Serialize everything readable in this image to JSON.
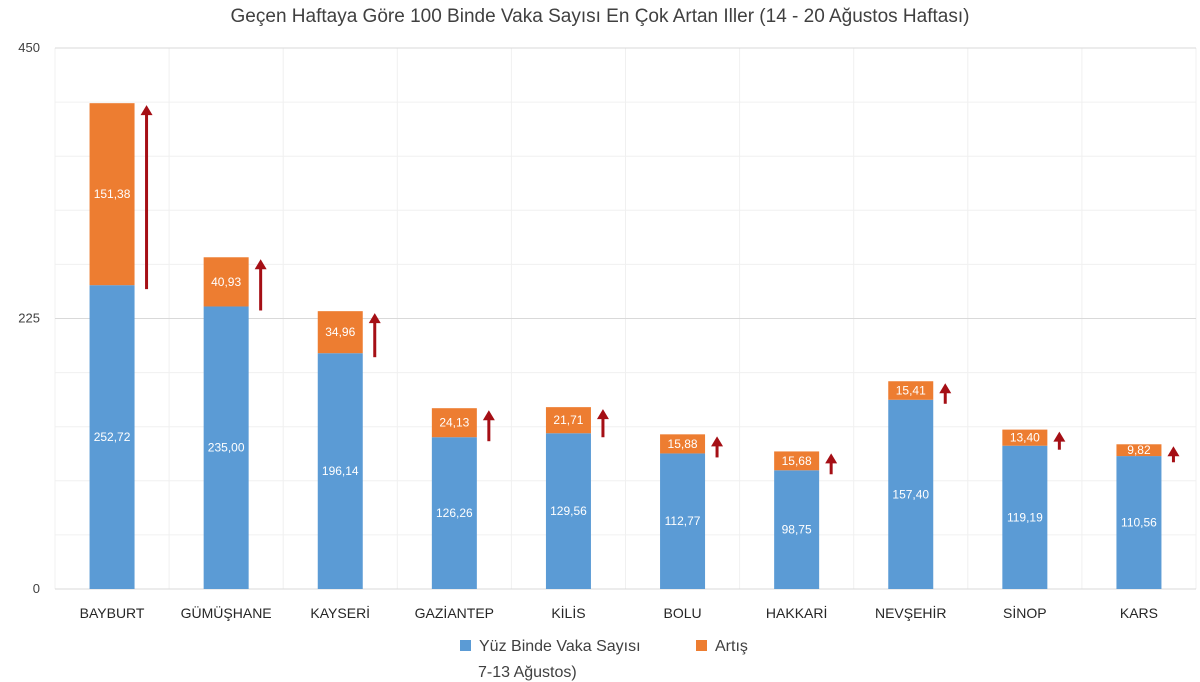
{
  "chart_data": {
    "type": "bar",
    "stacked": true,
    "title": "Geçen Haftaya Göre 100 Binde Vaka Sayısı En Çok Artan Iller (14 - 20 Ağustos Haftası)",
    "xlabel": "",
    "ylabel": "",
    "ylim": [
      0,
      450
    ],
    "yticks": [
      "0",
      "225",
      "450"
    ],
    "ytick_values": [
      0,
      225,
      450
    ],
    "grid": true,
    "legend_position": "bottom",
    "categories": [
      "BAYBURT",
      "GÜMÜŞHANE",
      "KAYSERİ",
      "GAZİANTEP",
      "KİLİS",
      "BOLU",
      "HAKKARİ",
      "NEVŞEHİR",
      "SİNOP",
      "KARS"
    ],
    "series": [
      {
        "name": "Yüz Binde Vaka Sayısı",
        "color": "#5b9bd5",
        "values": [
          252.72,
          235.0,
          196.14,
          126.26,
          129.56,
          112.77,
          98.75,
          157.4,
          119.19,
          110.56
        ],
        "labels": [
          "252,72",
          "235,00",
          "196,14",
          "126,26",
          "129,56",
          "112,77",
          "98,75",
          "157,40",
          "119,19",
          "110,56"
        ]
      },
      {
        "name": "Artış",
        "color": "#ed7d31",
        "values": [
          151.38,
          40.93,
          34.96,
          24.13,
          21.71,
          15.88,
          15.68,
          15.41,
          13.4,
          9.82
        ],
        "labels": [
          "151,38",
          "40,93",
          "34,96",
          "24,13",
          "21,71",
          "15,88",
          "15,68",
          "15,41",
          "13,40",
          "9,82"
        ]
      }
    ],
    "arrow_color": "#a50f15"
  },
  "legend": {
    "item1": "Yüz Binde Vaka Sayısı",
    "item1_sub": "7-13 Ağustos)",
    "item2": "Artış"
  }
}
